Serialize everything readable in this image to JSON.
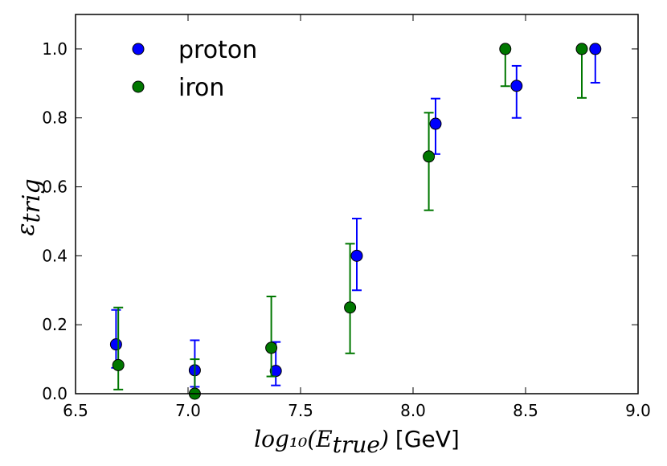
{
  "chart_data": {
    "type": "scatter",
    "title": "",
    "xlabel_math": "log₁₀(E",
    "xlabel_sub": "true",
    "xlabel_close": ")",
    "xlabel_unit": "[GeV]",
    "ylabel_main": "ε",
    "ylabel_sub": "trig",
    "xlim": [
      6.5,
      9.0
    ],
    "ylim": [
      0.0,
      1.1
    ],
    "xticks": [
      6.5,
      7.0,
      7.5,
      8.0,
      8.5,
      9.0
    ],
    "xtick_labels": [
      "6.5",
      "7.0",
      "7.5",
      "8.0",
      "8.5",
      "9.0"
    ],
    "yticks": [
      0.0,
      0.2,
      0.4,
      0.6,
      0.8,
      1.0
    ],
    "ytick_labels": [
      "0.0",
      "0.2",
      "0.4",
      "0.6",
      "0.8",
      "1.0"
    ],
    "grid": false,
    "legend_position": "top-left",
    "series": [
      {
        "name": "proton",
        "color": "#0000ff",
        "points": [
          {
            "x": 6.68,
            "y": 0.143,
            "err_low": 0.075,
            "err_high": 0.243
          },
          {
            "x": 7.03,
            "y": 0.068,
            "err_low": 0.02,
            "err_high": 0.155
          },
          {
            "x": 7.39,
            "y": 0.066,
            "err_low": 0.024,
            "err_high": 0.15
          },
          {
            "x": 7.75,
            "y": 0.4,
            "err_low": 0.3,
            "err_high": 0.508
          },
          {
            "x": 8.1,
            "y": 0.783,
            "err_low": 0.695,
            "err_high": 0.856
          },
          {
            "x": 8.46,
            "y": 0.893,
            "err_low": 0.8,
            "err_high": 0.951
          },
          {
            "x": 8.81,
            "y": 1.0,
            "err_low": 0.902,
            "err_high": 1.0
          }
        ]
      },
      {
        "name": "iron",
        "color": "#007700",
        "points": [
          {
            "x": 6.69,
            "y": 0.083,
            "err_low": 0.012,
            "err_high": 0.25
          },
          {
            "x": 7.03,
            "y": 0.0,
            "err_low": 0.0,
            "err_high": 0.1
          },
          {
            "x": 7.37,
            "y": 0.133,
            "err_low": 0.05,
            "err_high": 0.282
          },
          {
            "x": 7.72,
            "y": 0.25,
            "err_low": 0.117,
            "err_high": 0.435
          },
          {
            "x": 8.07,
            "y": 0.688,
            "err_low": 0.532,
            "err_high": 0.815
          },
          {
            "x": 8.41,
            "y": 1.0,
            "err_low": 0.892,
            "err_high": 1.0
          },
          {
            "x": 8.75,
            "y": 1.0,
            "err_low": 0.858,
            "err_high": 1.0
          }
        ]
      }
    ]
  }
}
